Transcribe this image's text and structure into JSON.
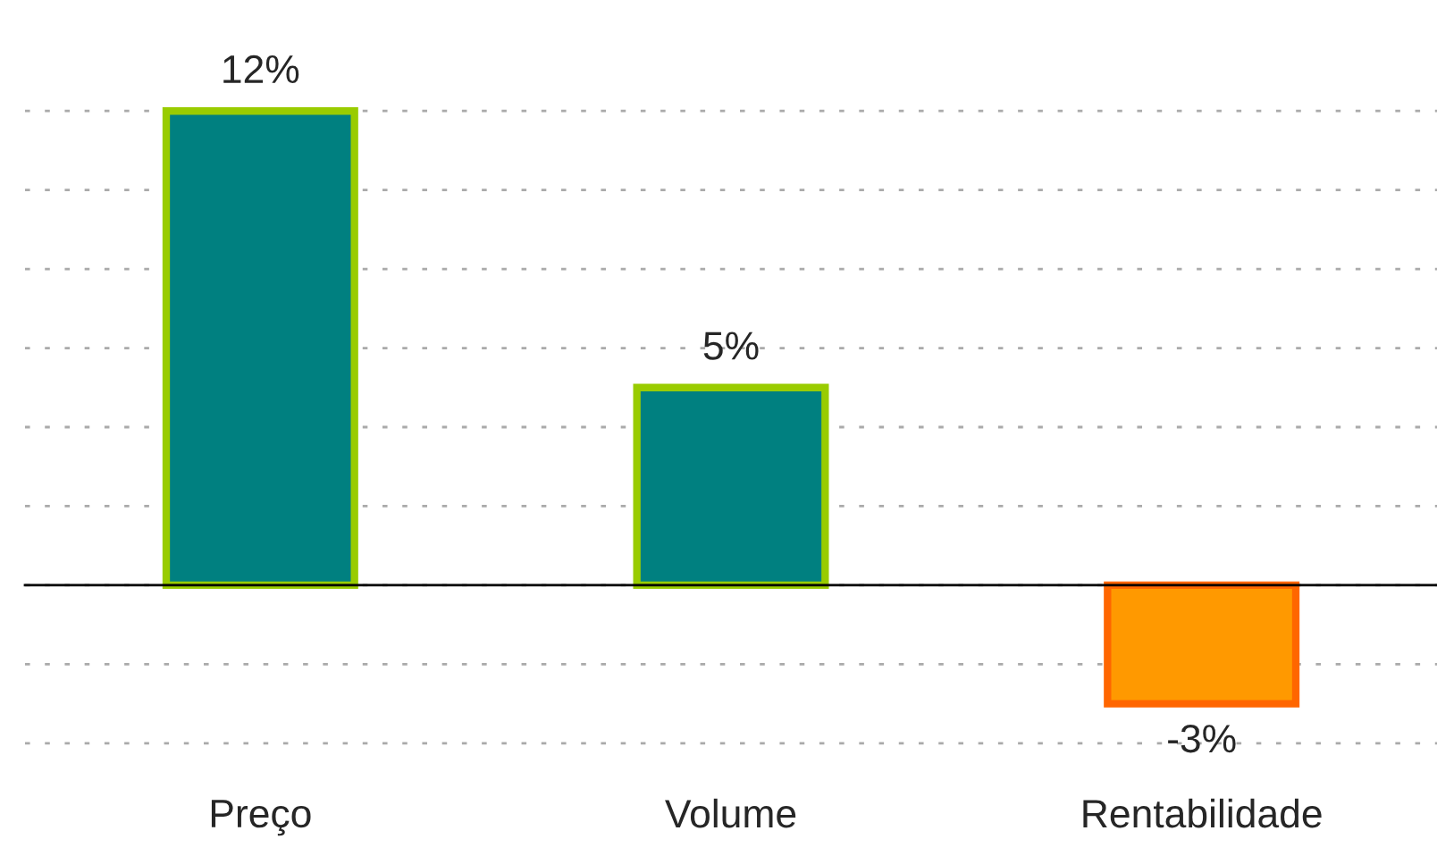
{
  "chart_data": {
    "type": "bar",
    "categories": [
      "Preço",
      "Volume",
      "Rentabilidade"
    ],
    "values": [
      12,
      5,
      -3
    ],
    "colors": [
      "#008080",
      "#008080",
      "#ff9900"
    ],
    "value_labels": [
      "12%",
      "5%",
      "-3%"
    ],
    "yticks": [
      {
        "value": -4,
        "label": null
      },
      {
        "value": -2,
        "label": null
      },
      {
        "value": 0,
        "label": null
      },
      {
        "value": 2,
        "label": null
      },
      {
        "value": 4,
        "label": null
      },
      {
        "value": 6,
        "label": null
      },
      {
        "value": 8,
        "label": null
      },
      {
        "value": 10,
        "label": null
      },
      {
        "value": 12,
        "label": null
      }
    ],
    "tick_labels": "x",
    "grid": "y"
  }
}
